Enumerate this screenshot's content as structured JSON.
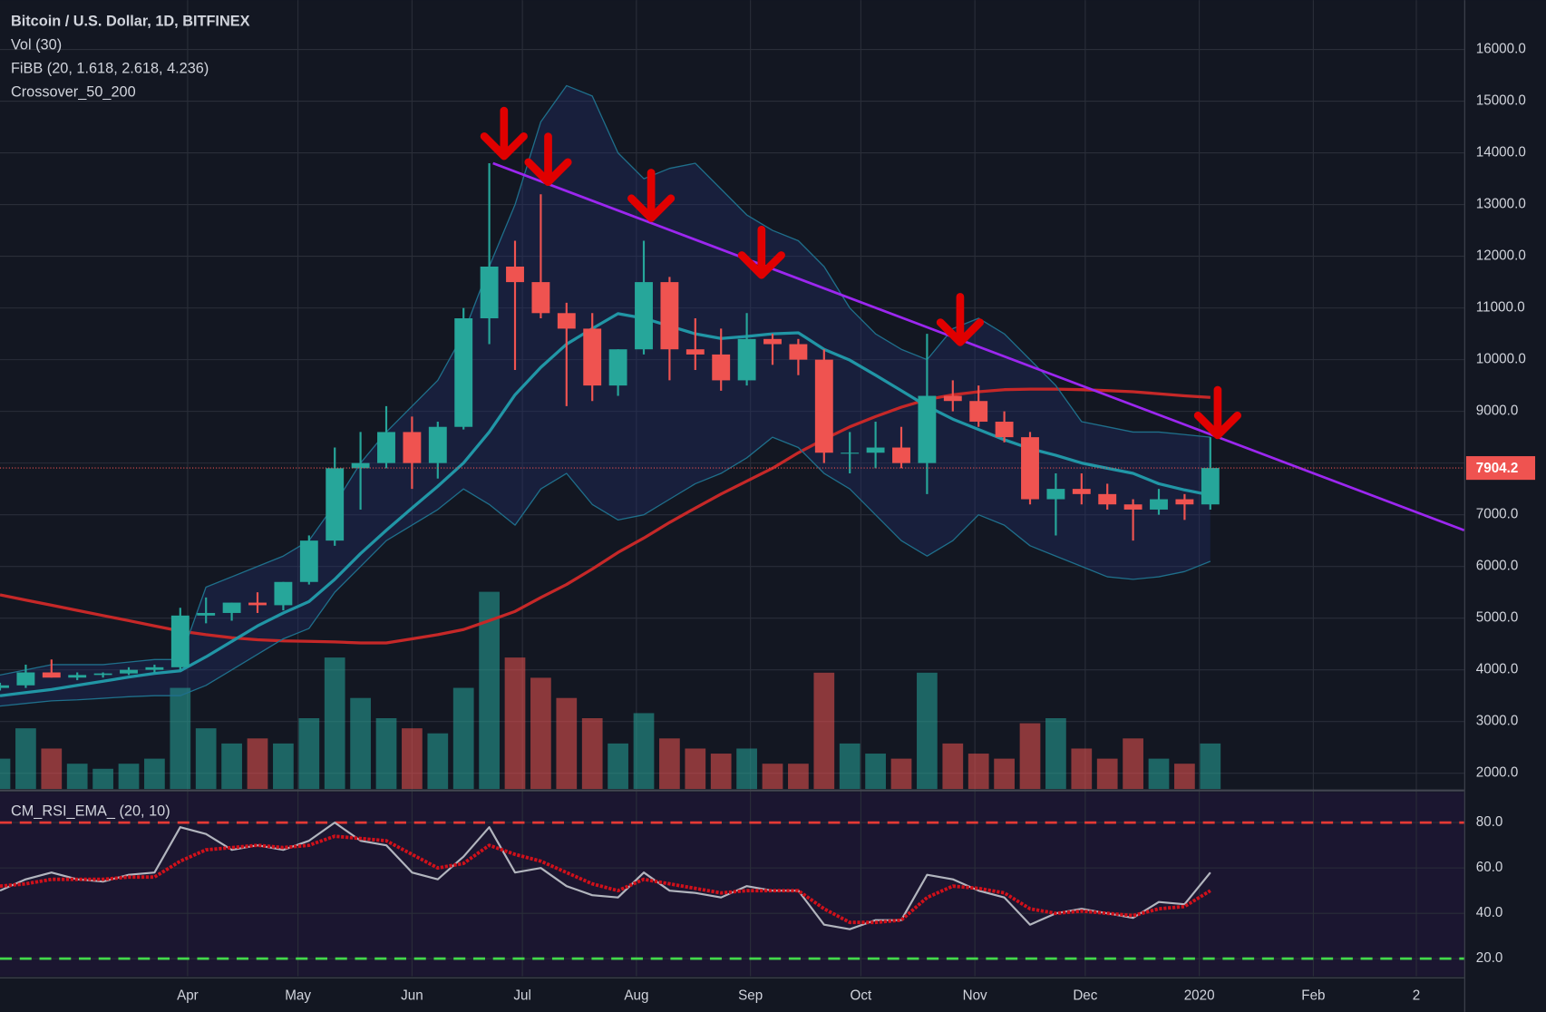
{
  "chart_data": [
    {
      "type": "candlestick",
      "title": "Bitcoin / U.S. Dollar, 1D, BITFINEX",
      "legend": [
        "Vol (30)",
        "FiBB (20, 1.618, 2.618, 4.236)",
        "Crossover_50_200"
      ],
      "x": [
        0,
        7,
        14,
        21,
        28,
        35,
        42,
        49,
        56,
        63,
        70,
        77,
        84,
        91,
        98,
        105,
        112,
        119,
        126,
        133,
        140,
        147,
        154,
        161,
        168,
        175,
        182,
        189,
        196,
        203,
        210,
        217,
        224,
        231,
        238,
        245,
        252,
        259,
        266,
        273,
        280,
        287,
        294,
        301,
        308,
        315,
        322,
        329
      ],
      "open": [
        3650,
        3700,
        3950,
        3850,
        3900,
        3930,
        4000,
        4050,
        5050,
        5100,
        5300,
        5250,
        5700,
        6500,
        7900,
        8000,
        8600,
        8000,
        8700,
        10800,
        11800,
        11500,
        10900,
        10600,
        9500,
        10200,
        11500,
        10200,
        10100,
        9600,
        10400,
        10300,
        10000,
        8200,
        8200,
        8300,
        8000,
        9300,
        9200,
        8800,
        8500,
        7300,
        7500,
        7400,
        7200,
        7100,
        7300,
        7200
      ],
      "high": [
        3750,
        4100,
        4200,
        3950,
        3950,
        4050,
        4100,
        5200,
        5400,
        5300,
        5500,
        5700,
        6600,
        8300,
        8600,
        9100,
        8900,
        8800,
        11000,
        13800,
        12300,
        13200,
        11100,
        10900,
        10200,
        12300,
        11600,
        10800,
        10600,
        10900,
        10500,
        10400,
        10200,
        8600,
        8800,
        8700,
        10500,
        9600,
        9500,
        9000,
        8600,
        7800,
        7800,
        7600,
        7300,
        7500,
        7400,
        8500
      ],
      "low": [
        3600,
        3650,
        3850,
        3800,
        3850,
        3900,
        3950,
        4000,
        4900,
        4950,
        5100,
        5150,
        5650,
        6400,
        7100,
        7900,
        7500,
        7700,
        8650,
        10300,
        9800,
        10800,
        9100,
        9200,
        9300,
        10100,
        9600,
        9800,
        9400,
        9500,
        9900,
        9700,
        8000,
        7800,
        7900,
        7900,
        7400,
        9000,
        8700,
        8400,
        7200,
        6600,
        7200,
        7100,
        6500,
        7000,
        6900,
        7100
      ],
      "close": [
        3700,
        3950,
        3850,
        3900,
        3930,
        4000,
        4050,
        5050,
        5100,
        5300,
        5250,
        5700,
        6500,
        7900,
        8000,
        8600,
        8000,
        8700,
        10800,
        11800,
        11500,
        10900,
        10600,
        9500,
        10200,
        11500,
        10200,
        10100,
        9600,
        10400,
        10300,
        10000,
        8200,
        8200,
        8300,
        8000,
        9300,
        9200,
        8800,
        8500,
        7300,
        7500,
        7400,
        7200,
        7100,
        7300,
        7200,
        7904.2
      ],
      "volume": [
        30,
        60,
        40,
        25,
        20,
        25,
        30,
        100,
        60,
        45,
        50,
        45,
        70,
        130,
        90,
        70,
        60,
        55,
        100,
        195,
        130,
        110,
        90,
        70,
        45,
        75,
        50,
        40,
        35,
        40,
        25,
        25,
        115,
        45,
        35,
        30,
        115,
        45,
        35,
        30,
        65,
        70,
        40,
        30,
        50,
        30,
        25,
        45
      ],
      "up_color": "#26a69a",
      "down_color": "#ef5350",
      "series": [
        {
          "color": "#c62828",
          "values": [
            5450,
            5350,
            5250,
            5150,
            5050,
            4950,
            4850,
            4750,
            4680,
            4620,
            4580,
            4560,
            4550,
            4540,
            4520,
            4520,
            4600,
            4680,
            4780,
            4950,
            5130,
            5400,
            5650,
            5950,
            6270,
            6550,
            6850,
            7130,
            7400,
            7650,
            7900,
            8200,
            8460,
            8700,
            8900,
            9080,
            9230,
            9320,
            9380,
            9420,
            9430,
            9430,
            9420,
            9400,
            9380,
            9340,
            9300,
            9270
          ]
        },
        {
          "color": "#2196a6",
          "values": [
            3500,
            3560,
            3620,
            3700,
            3780,
            3860,
            3930,
            3980,
            4250,
            4550,
            4850,
            5100,
            5320,
            5750,
            6250,
            6700,
            7130,
            7550,
            8000,
            8600,
            9320,
            9850,
            10300,
            10600,
            10890,
            10800,
            10650,
            10500,
            10410,
            10450,
            10500,
            10520,
            10200,
            9990,
            9700,
            9400,
            9100,
            8850,
            8650,
            8450,
            8280,
            8150,
            8000,
            7900,
            7800,
            7600,
            7480,
            7380
          ]
        },
        {
          "color": "#1f6f8b",
          "values": [
            3900,
            4000,
            4100,
            4100,
            4100,
            4150,
            4200,
            4200,
            5600,
            5800,
            6000,
            6200,
            6500,
            7200,
            8000,
            8600,
            9100,
            9600,
            10500,
            11800,
            13000,
            14600,
            15300,
            15100,
            14000,
            13500,
            13700,
            13800,
            13300,
            12800,
            12500,
            12300,
            11800,
            11000,
            10500,
            10200,
            10000,
            10600,
            10800,
            10500,
            10000,
            9500,
            8800,
            8700,
            8600,
            8600,
            8550,
            8500
          ]
        },
        {
          "color": "#1f6f8b",
          "values": [
            3300,
            3350,
            3400,
            3420,
            3450,
            3480,
            3500,
            3500,
            3700,
            4000,
            4300,
            4600,
            4800,
            5500,
            6000,
            6500,
            6800,
            7100,
            7500,
            7200,
            6800,
            7500,
            7800,
            7200,
            6900,
            7000,
            7300,
            7600,
            7800,
            8100,
            8500,
            8300,
            7800,
            7500,
            7000,
            6500,
            6200,
            6500,
            7000,
            6800,
            6400,
            6200,
            6000,
            5800,
            5750,
            5800,
            5900,
            6100
          ]
        }
      ],
      "trendline": {
        "color": "#9c27f0",
        "x": [
          134,
          398
        ],
        "y": [
          13800,
          6700
        ]
      },
      "arrows": {
        "color": "#e00000",
        "x": [
          137,
          149,
          177,
          207,
          261,
          331
        ],
        "y": [
          13900,
          13400,
          12700,
          11600,
          10300,
          8500
        ]
      },
      "last_price": 7904.2,
      "xlim": [
        0,
        398
      ],
      "ylim": [
        1695,
        16954
      ],
      "yticks": [
        {
          "value": 2000,
          "label": "2000.0"
        },
        {
          "value": 3000,
          "label": "3000.0"
        },
        {
          "value": 4000,
          "label": "4000.0"
        },
        {
          "value": 5000,
          "label": "5000.0"
        },
        {
          "value": 6000,
          "label": "6000.0"
        },
        {
          "value": 7000,
          "label": "7000.0"
        },
        {
          "value": 8000,
          "label": "8000.0"
        },
        {
          "value": 9000,
          "label": "9000.0"
        },
        {
          "value": 10000,
          "label": "10000.0"
        },
        {
          "value": 11000,
          "label": "11000.0"
        },
        {
          "value": 12000,
          "label": "12000.0"
        },
        {
          "value": 13000,
          "label": "13000.0"
        },
        {
          "value": 14000,
          "label": "14000.0"
        },
        {
          "value": 15000,
          "label": "15000.0"
        },
        {
          "value": 16000,
          "label": "16000.0"
        }
      ],
      "grid": true
    },
    {
      "type": "line",
      "title": "CM_RSI_EMA_ (20, 10)",
      "x": [
        0,
        7,
        14,
        21,
        28,
        35,
        42,
        49,
        56,
        63,
        70,
        77,
        84,
        91,
        98,
        105,
        112,
        119,
        126,
        133,
        140,
        147,
        154,
        161,
        168,
        175,
        182,
        189,
        196,
        203,
        210,
        217,
        224,
        231,
        238,
        245,
        252,
        259,
        266,
        273,
        280,
        287,
        294,
        301,
        308,
        315,
        322,
        329
      ],
      "series": [
        {
          "color": "#b2b5be",
          "values": [
            50,
            55,
            58,
            55,
            54,
            57,
            58,
            78,
            75,
            68,
            70,
            68,
            72,
            80,
            72,
            70,
            58,
            55,
            65,
            78,
            58,
            60,
            52,
            48,
            47,
            58,
            50,
            49,
            47,
            52,
            50,
            50,
            35,
            33,
            37,
            37,
            57,
            55,
            50,
            47,
            35,
            40,
            42,
            40,
            38,
            45,
            44,
            58
          ]
        },
        {
          "color": "#d0101a",
          "values": [
            52,
            53,
            55,
            55,
            55,
            56,
            56,
            63,
            68,
            69,
            70,
            69,
            70,
            74,
            73,
            72,
            66,
            60,
            62,
            70,
            66,
            63,
            58,
            53,
            50,
            55,
            53,
            51,
            49,
            50,
            50,
            50,
            42,
            36,
            36,
            37,
            47,
            52,
            51,
            49,
            42,
            40,
            41,
            40,
            39,
            42,
            43,
            50
          ]
        }
      ],
      "levels": [
        {
          "value": 80,
          "color": "#e53935"
        },
        {
          "value": 20,
          "color": "#43d84a"
        }
      ],
      "xlim": [
        0,
        398
      ],
      "ylim": [
        12.2,
        93.5
      ],
      "yticks": [
        {
          "value": 20,
          "label": "20.0"
        },
        {
          "value": 40,
          "label": "40.0"
        },
        {
          "value": 60,
          "label": "60.0"
        },
        {
          "value": 80,
          "label": "80.0"
        }
      ],
      "xticks": [
        {
          "value": 51,
          "label": "Apr"
        },
        {
          "value": 81,
          "label": "May"
        },
        {
          "value": 112,
          "label": "Jun"
        },
        {
          "value": 142,
          "label": "Jul"
        },
        {
          "value": 173,
          "label": "Aug"
        },
        {
          "value": 204,
          "label": "Sep"
        },
        {
          "value": 234,
          "label": "Oct"
        },
        {
          "value": 265,
          "label": "Nov"
        },
        {
          "value": 295,
          "label": "Dec"
        },
        {
          "value": 326,
          "label": "2020"
        },
        {
          "value": 357,
          "label": "Feb"
        },
        {
          "value": 385,
          "label": "2"
        }
      ],
      "grid": true
    }
  ]
}
